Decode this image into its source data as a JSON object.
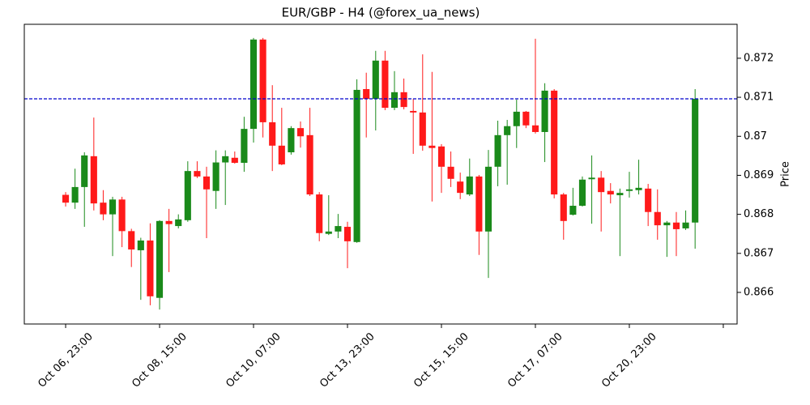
{
  "chart_data": {
    "type": "candlestick",
    "title": "EUR/GBP - H4 (@forex_ua_news)",
    "y_label": "Price",
    "up_color": "#1a8a1a",
    "down_color": "#ff1a1a",
    "hline": {
      "value": 0.87096,
      "color": "#0000cc"
    },
    "open": [
      0.8685,
      0.8683,
      0.8687,
      0.86949,
      0.8683,
      0.868,
      0.86838,
      0.86757,
      0.86708,
      0.86733,
      0.86586,
      0.86783,
      0.8677,
      0.86785,
      0.86911,
      0.86897,
      0.8686,
      0.86933,
      0.86945,
      0.86932,
      0.87019,
      0.87248,
      0.87036,
      0.86976,
      0.86959,
      0.87021,
      0.87003,
      0.86851,
      0.8675,
      0.86756,
      0.86768,
      0.86729,
      0.87121,
      0.87096,
      0.87194,
      0.87073,
      0.87113,
      0.87065,
      0.87061,
      0.86976,
      0.86974,
      0.86922,
      0.86884,
      0.86851,
      0.86897,
      0.86756,
      0.86922,
      0.87003,
      0.87026,
      0.87063,
      0.87028,
      0.87011,
      0.87117,
      0.86851,
      0.86799,
      0.86822,
      0.8689,
      0.86894,
      0.8686,
      0.86849,
      0.8686,
      0.86862,
      0.86866,
      0.86806,
      0.86772,
      0.86779,
      0.86764,
      0.86779
    ],
    "high": [
      0.86857,
      0.86917,
      0.86959,
      0.87048,
      0.86862,
      0.86845,
      0.86845,
      0.86763,
      0.8674,
      0.86777,
      0.86785,
      0.86814,
      0.868,
      0.86936,
      0.86936,
      0.86922,
      0.86964,
      0.86964,
      0.86961,
      0.8705,
      0.87252,
      0.87252,
      0.87131,
      0.87073,
      0.87026,
      0.87038,
      0.87073,
      0.86857,
      0.86849,
      0.86801,
      0.86781,
      0.87146,
      0.87163,
      0.87219,
      0.87219,
      0.87167,
      0.87148,
      0.87096,
      0.8721,
      0.87165,
      0.8698,
      0.86961,
      0.86907,
      0.86943,
      0.86901,
      0.86965,
      0.8704,
      0.87042,
      0.87094,
      0.87065,
      0.8725,
      0.87136,
      0.87121,
      0.86855,
      0.86868,
      0.86897,
      0.86951,
      0.86911,
      0.8688,
      0.86866,
      0.86909,
      0.8694,
      0.86878,
      0.86864,
      0.86783,
      0.86806,
      0.8681,
      0.87121
    ],
    "low": [
      0.8682,
      0.86814,
      0.86768,
      0.8681,
      0.86785,
      0.86693,
      0.86716,
      0.86665,
      0.86581,
      0.86567,
      0.86556,
      0.86652,
      0.86764,
      0.86781,
      0.86893,
      0.86739,
      0.86814,
      0.86824,
      0.8693,
      0.86909,
      0.86984,
      0.86997,
      0.86911,
      0.86926,
      0.86953,
      0.86971,
      0.86847,
      0.86731,
      0.86747,
      0.86739,
      0.86662,
      0.86727,
      0.86997,
      0.87015,
      0.87067,
      0.87067,
      0.87069,
      0.86955,
      0.86963,
      0.86833,
      0.86855,
      0.8687,
      0.86839,
      0.86847,
      0.86696,
      0.86637,
      0.86872,
      0.86876,
      0.8697,
      0.87021,
      0.87007,
      0.86934,
      0.86841,
      0.86735,
      0.86797,
      0.8682,
      0.86776,
      0.86756,
      0.86828,
      0.86693,
      0.86843,
      0.86851,
      0.8677,
      0.86735,
      0.86691,
      0.86693,
      0.8676,
      0.86712
    ],
    "close": [
      0.8683,
      0.8687,
      0.86951,
      0.86828,
      0.868,
      0.86838,
      0.86757,
      0.8671,
      0.86733,
      0.8659,
      0.86783,
      0.86775,
      0.86787,
      0.86911,
      0.86897,
      0.86864,
      0.86933,
      0.86949,
      0.86932,
      0.87019,
      0.87248,
      0.87036,
      0.86976,
      0.86928,
      0.87021,
      0.87,
      0.86851,
      0.86752,
      0.86756,
      0.8677,
      0.86731,
      0.87119,
      0.87096,
      0.87194,
      0.87073,
      0.87113,
      0.87075,
      0.87061,
      0.86976,
      0.8697,
      0.86922,
      0.86891,
      0.86855,
      0.86897,
      0.86756,
      0.86922,
      0.87003,
      0.87026,
      0.87063,
      0.87028,
      0.87011,
      0.87117,
      0.86851,
      0.86783,
      0.86822,
      0.86889,
      0.86894,
      0.86857,
      0.86851,
      0.86855,
      0.86864,
      0.86868,
      0.86806,
      0.86772,
      0.86779,
      0.86762,
      0.86779,
      0.87096
    ],
    "xlim": [
      -4.4,
      71.47
    ],
    "xticks": [
      {
        "value": 0,
        "label": "Oct 06, 23:00"
      },
      {
        "value": 10,
        "label": "Oct 08, 15:00"
      },
      {
        "value": 20,
        "label": "Oct 10, 07:00"
      },
      {
        "value": 30,
        "label": "Oct 13, 23:00"
      },
      {
        "value": 40,
        "label": "Oct 15, 15:00"
      },
      {
        "value": 50,
        "label": "Oct 17, 07:00"
      },
      {
        "value": 60,
        "label": "Oct 20, 23:00"
      },
      {
        "value": 70,
        "label": null
      }
    ],
    "ylim": [
      0.86519,
      0.87287
    ],
    "yticks": [
      0.866,
      0.867,
      0.868,
      0.869,
      0.87,
      0.871,
      0.872
    ]
  }
}
